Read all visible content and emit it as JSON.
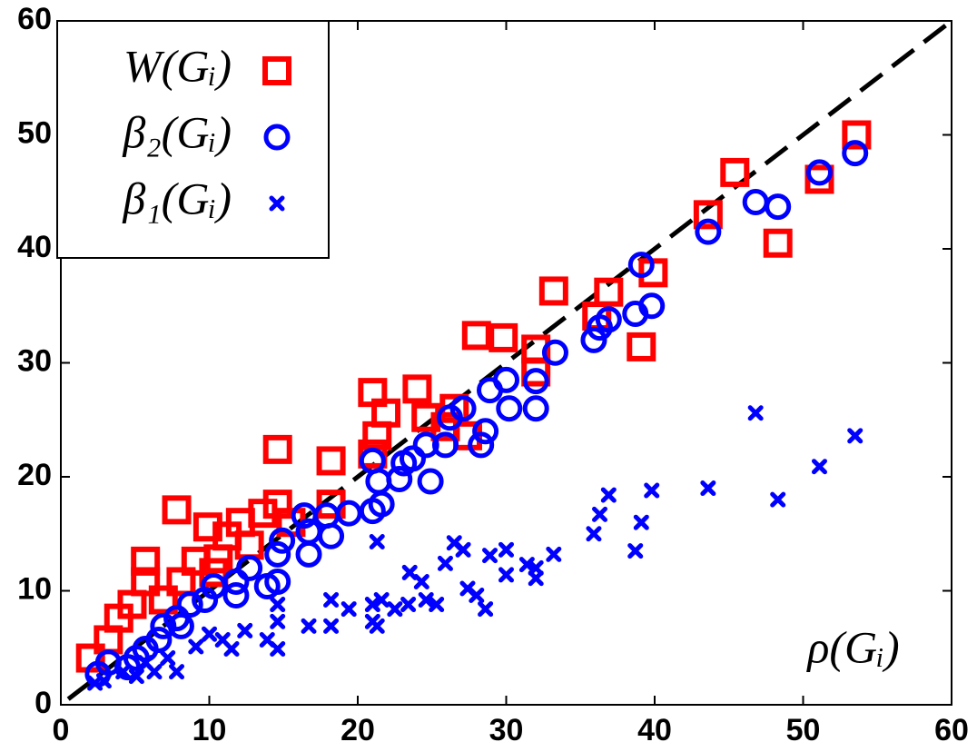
{
  "chart_data": {
    "type": "scatter",
    "x_label": "ρ(Gᵢ)",
    "xlim": [
      0,
      60
    ],
    "ylim": [
      0,
      60
    ],
    "xticks": [
      0,
      10,
      20,
      30,
      40,
      50,
      60
    ],
    "yticks": [
      0,
      10,
      20,
      30,
      40,
      50,
      60
    ],
    "legend": "upper left",
    "series": [
      {
        "name": "W(Gᵢ)",
        "color": "#ff0000",
        "marker": "square",
        "x": [
          53.6,
          51.1,
          45.4,
          48.3,
          43.6,
          39.9,
          39.1,
          36.9,
          33.2,
          36.1,
          32.0,
          29.8,
          28.0,
          32.0,
          26.5,
          24.0,
          21.0,
          21.9,
          21.3,
          21.0,
          14.6,
          18.2,
          24.6,
          25.9,
          27.4,
          14.6,
          13.6,
          18.2,
          7.8,
          9.9,
          12.1,
          11.2,
          12.7,
          9.1,
          5.7,
          5.7,
          8.1,
          10.6,
          6.9,
          3.9,
          4.8,
          3.2,
          2.0,
          10.3,
          15.5
        ],
        "y": [
          50.0,
          46.1,
          46.7,
          40.5,
          43.0,
          37.9,
          31.4,
          36.2,
          36.3,
          34.1,
          31.2,
          32.2,
          32.4,
          29.2,
          26.0,
          27.7,
          27.4,
          25.6,
          23.6,
          22.0,
          22.4,
          21.4,
          25.2,
          24.4,
          23.6,
          17.6,
          16.8,
          17.6,
          17.1,
          15.6,
          16.0,
          14.8,
          14.0,
          12.6,
          12.6,
          10.8,
          10.8,
          12.8,
          9.2,
          7.6,
          8.8,
          5.7,
          4.1,
          11.6,
          16.0
        ]
      },
      {
        "name": "β₂(Gᵢ)",
        "color": "#0000ff",
        "marker": "circle",
        "x": [
          53.5,
          51.1,
          46.8,
          48.3,
          43.6,
          39.1,
          39.8,
          38.7,
          36.9,
          36.3,
          35.9,
          33.3,
          32.0,
          32.0,
          30.0,
          30.2,
          28.9,
          28.6,
          28.3,
          27.1,
          26.2,
          25.9,
          24.6,
          23.7,
          24.9,
          23.1,
          22.8,
          21.0,
          21.4,
          21.6,
          21.0,
          19.4,
          17.9,
          18.2,
          16.4,
          16.7,
          16.7,
          14.9,
          14.6,
          14.6,
          13.9,
          12.7,
          11.8,
          11.8,
          10.3,
          9.7,
          8.7,
          7.8,
          8.1,
          6.9,
          6.6,
          5.7,
          5.1,
          4.5,
          3.2,
          2.5
        ],
        "y": [
          48.4,
          46.7,
          44.1,
          43.7,
          41.5,
          38.6,
          35.0,
          34.3,
          33.8,
          33.1,
          32.0,
          30.9,
          28.4,
          26.0,
          28.5,
          26.0,
          27.6,
          24.0,
          22.8,
          26.0,
          25.2,
          22.8,
          22.8,
          21.6,
          19.6,
          21.2,
          19.8,
          21.4,
          19.6,
          17.6,
          17.0,
          16.8,
          16.6,
          14.8,
          16.6,
          15.2,
          13.2,
          14.4,
          13.2,
          10.8,
          10.4,
          12.0,
          10.8,
          9.6,
          10.4,
          9.2,
          8.8,
          7.6,
          6.9,
          6.9,
          5.7,
          4.9,
          4.1,
          3.3,
          3.7,
          2.7
        ]
      },
      {
        "name": "β₁(Gᵢ)",
        "color": "#0000ff",
        "marker": "cross",
        "x": [
          53.5,
          51.1,
          46.8,
          48.3,
          43.6,
          39.1,
          39.8,
          38.7,
          36.9,
          36.3,
          35.9,
          33.2,
          32.0,
          32.0,
          31.4,
          30.0,
          30.0,
          28.9,
          28.6,
          28.0,
          27.4,
          27.1,
          26.5,
          25.9,
          25.3,
          24.6,
          24.3,
          23.5,
          23.4,
          22.5,
          21.3,
          21.0,
          21.6,
          21.0,
          21.3,
          19.4,
          18.2,
          18.2,
          16.7,
          14.6,
          14.6,
          14.6,
          13.9,
          12.4,
          11.5,
          10.9,
          10.0,
          9.1,
          7.8,
          7.2,
          6.3,
          5.7,
          5.1,
          4.2,
          2.9,
          2.3
        ],
        "y": [
          23.6,
          20.9,
          25.6,
          18.0,
          19.0,
          16.0,
          18.8,
          13.5,
          18.4,
          16.7,
          15.0,
          13.2,
          12.0,
          11.1,
          12.3,
          13.6,
          11.4,
          13.1,
          8.4,
          9.6,
          10.2,
          13.6,
          14.2,
          12.4,
          8.8,
          9.2,
          10.8,
          11.6,
          8.8,
          8.4,
          14.3,
          8.8,
          9.2,
          7.3,
          6.9,
          8.4,
          9.2,
          6.9,
          6.9,
          8.8,
          7.3,
          4.9,
          5.7,
          6.5,
          4.9,
          5.7,
          6.2,
          5.1,
          2.9,
          4.1,
          2.9,
          3.7,
          2.5,
          2.9,
          2.1,
          1.9
        ]
      }
    ]
  }
}
